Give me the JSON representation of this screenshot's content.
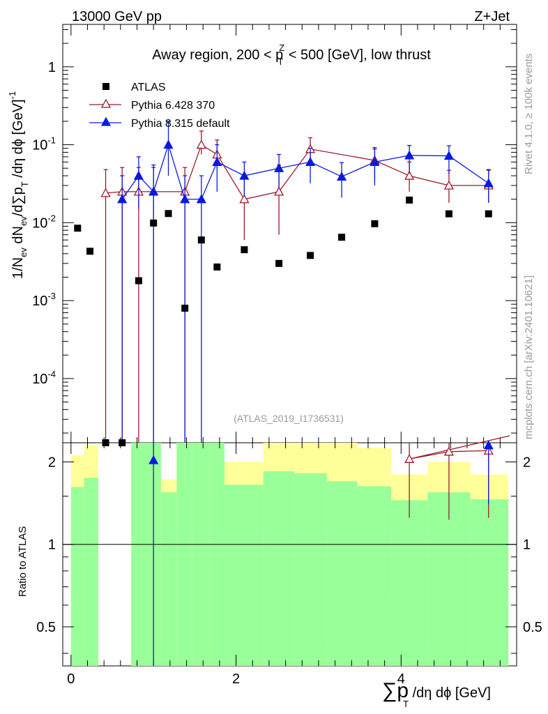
{
  "header": {
    "energy_label": "13000 GeV pp",
    "process_label": "Z+Jet",
    "region_title_prefix": "Away region, 200 < p",
    "region_title_sup": "Z",
    "region_title_sub": "T",
    "region_title_suffix": " < 500 [GeV], low thrust",
    "analysis_id": "(ATLAS_2019_I1736531)",
    "side_label_top": "Rivet 4.1.0, ≥ 100k events",
    "side_label_bottom": "mcplots.cern.ch [arXiv:2401.10621]"
  },
  "axes": {
    "x_label": "∑p",
    "x_label_sub": "T",
    "x_label_rest": " /dη dϕ [GeV]",
    "y_label_top": "1/N",
    "y_label_top_sub": "ev",
    "y_label_top_rest": " dN",
    "y_label_top_sub2": "ev",
    "y_label_top_rest2": "/d∑p",
    "y_label_top_sub3": "T",
    "y_label_top_rest3": " /dη dϕ  [GeV]",
    "y_label_top_sup": "-1",
    "y_label_bottom": "Ratio to ATLAS",
    "x_ticks": [
      "0",
      "2",
      "4"
    ],
    "y_ticks_main": [
      "10",
      "10",
      "10",
      "10",
      "1"
    ],
    "y_ticks_main_exp": [
      "-4",
      "-3",
      "-2",
      "-1",
      ""
    ],
    "y_ticks_ratio": [
      "0.5",
      "1",
      "2"
    ]
  },
  "legend": [
    {
      "label": "ATLAS",
      "color": "#000000",
      "marker": "square"
    },
    {
      "label": "Pythia 6.428 370",
      "color": "#9a1a2a",
      "marker": "open-triangle"
    },
    {
      "label": "Pythia 8.315 default",
      "color": "#0a1ae0",
      "marker": "filled-triangle"
    }
  ],
  "chart_data": {
    "type": "scatter",
    "title": "Away region, 200 < pT^Z < 500 [GeV], low thrust",
    "xlabel": "∑pT /dη dϕ [GeV]",
    "ylabel": "1/Nev dNev/d∑pT /dη dϕ [GeV]^-1",
    "xlim": [
      -0.1,
      5.4
    ],
    "ylim_main": [
      1.5e-05,
      3.5
    ],
    "ylim_ratio": [
      0.36,
      2.35
    ],
    "log_y": true,
    "atlas": {
      "x": [
        0.08,
        0.23,
        0.42,
        0.62,
        0.82,
        1.0,
        1.18,
        1.38,
        1.58,
        1.77,
        2.1,
        2.52,
        2.9,
        3.28,
        3.68,
        4.1,
        4.58,
        5.06
      ],
      "y": [
        0.0085,
        0.0043,
        0.0,
        0.0,
        0.0018,
        0.0099,
        0.0131,
        0.0008,
        0.006,
        0.0027,
        0.0045,
        0.003,
        0.0038,
        0.0065,
        0.0097,
        0.0195,
        0.013,
        0.013
      ]
    },
    "series": [
      {
        "name": "Pythia 6.428 370",
        "x": [
          0.42,
          0.62,
          0.82,
          1.0,
          1.38,
          1.58,
          1.77,
          2.1,
          2.52,
          2.9,
          3.68,
          4.1,
          4.58,
          5.06
        ],
        "y": [
          0.024,
          0.025,
          0.025,
          0.025,
          0.025,
          0.1,
          0.075,
          0.02,
          0.025,
          0.088,
          0.063,
          0.04,
          0.03,
          0.03
        ],
        "err_lo": [
          0.024,
          0.025,
          0.025,
          0.025,
          0.025,
          0.025,
          0.025,
          0.014,
          0.018,
          0.03,
          0.03,
          0.015,
          0.012,
          0.012
        ],
        "err_hi": [
          0.024,
          0.026,
          0.026,
          0.026,
          0.026,
          0.05,
          0.04,
          0.02,
          0.03,
          0.035,
          0.025,
          0.02,
          0.017,
          0.017
        ]
      },
      {
        "name": "Pythia 8.315 default",
        "x": [
          0.62,
          0.82,
          1.0,
          1.18,
          1.38,
          1.58,
          1.77,
          2.1,
          2.52,
          2.9,
          3.28,
          3.68,
          4.1,
          4.58,
          5.06
        ],
        "y": [
          0.02,
          0.04,
          0.025,
          0.1,
          0.02,
          0.02,
          0.06,
          0.04,
          0.05,
          0.06,
          0.039,
          0.06,
          0.073,
          0.072,
          0.032
        ],
        "err_lo": [
          0.02,
          0.025,
          0.025,
          0.06,
          0.02,
          0.02,
          0.035,
          0.018,
          0.022,
          0.028,
          0.018,
          0.03,
          0.03,
          0.03,
          0.014
        ],
        "err_hi": [
          0.02,
          0.03,
          0.03,
          0.1,
          0.02,
          0.02,
          0.04,
          0.02,
          0.025,
          0.03,
          0.02,
          0.032,
          0.025,
          0.025,
          0.016
        ]
      }
    ],
    "ratio": {
      "pythia6": {
        "x": [
          4.1,
          4.58,
          5.06
        ],
        "y": [
          2.05,
          2.18,
          2.2
        ],
        "err_lo": [
          0.8,
          0.95,
          0.95
        ],
        "err_hi": [
          0.4,
          0.4,
          0.4
        ]
      },
      "pythia8": {
        "x": [
          1.0,
          5.06
        ],
        "y": [
          2.03,
          2.3
        ],
        "err_lo": [
          2.0,
          0.9
        ],
        "err_hi": [
          0.4,
          0.1
        ]
      }
    },
    "ratio_bands": {
      "edges": [
        0.0,
        0.16,
        0.33,
        0.5,
        0.73,
        0.91,
        1.09,
        1.28,
        1.47,
        1.68,
        1.86,
        2.33,
        2.71,
        3.1,
        3.47,
        3.88,
        4.32,
        4.84,
        5.3
      ],
      "green_lo": [
        0.0,
        0.0,
        1.0,
        1.0,
        0.0,
        0.0,
        0.0,
        0.0,
        0.0,
        0.0,
        0.0,
        0.0,
        0.0,
        0.0,
        0.0,
        0.0,
        0.0,
        0.0
      ],
      "green_hi": [
        1.62,
        1.75,
        1.0,
        1.0,
        2.5,
        2.5,
        1.55,
        2.5,
        2.5,
        2.5,
        1.65,
        1.85,
        1.82,
        1.7,
        1.63,
        1.45,
        1.55,
        1.46
      ],
      "yellow_lo": [
        0.37,
        0.0,
        1.0,
        1.0,
        0.0,
        0.0,
        0.42,
        0.0,
        0.0,
        0.0,
        0.37,
        0.0,
        0.0,
        0.42,
        0.0,
        0.65,
        0.48,
        0.62
      ],
      "yellow_hi": [
        2.12,
        2.3,
        1.0,
        1.0,
        2.5,
        2.5,
        1.73,
        2.5,
        2.5,
        2.5,
        2.0,
        2.5,
        2.5,
        2.5,
        2.25,
        1.8,
        2.0,
        1.8
      ]
    }
  }
}
